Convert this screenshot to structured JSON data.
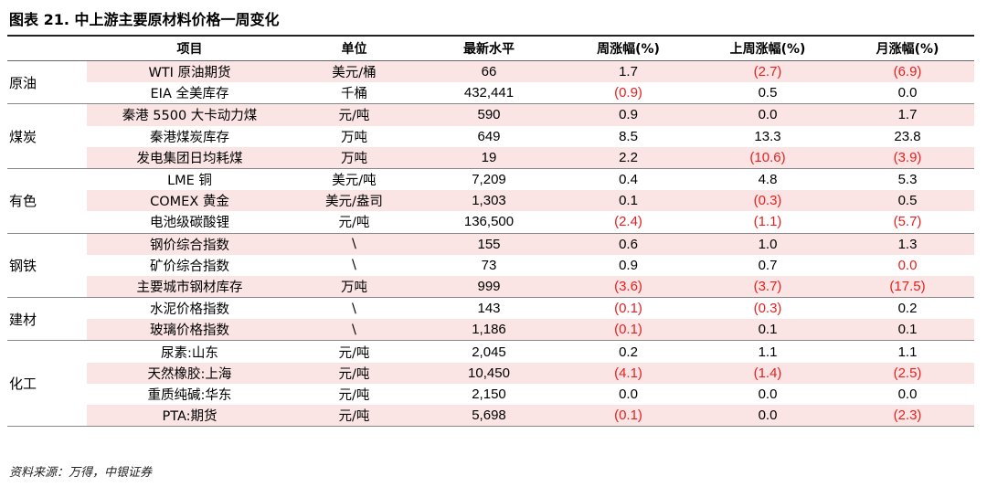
{
  "title": "图表 21. 中上游主要原材料价格一周变化",
  "red_color": "#e8201f",
  "shade_color": "#fbe4e4",
  "table": {
    "columns": [
      "项目",
      "单位",
      "最新水平",
      "周涨幅(%)",
      "上周涨幅(%)",
      "月涨幅(%)"
    ],
    "groups": [
      {
        "name": "原油",
        "rows": [
          {
            "item": "WTI 原油期货",
            "unit": "美元/桶",
            "latest": "66",
            "week": "1.7",
            "last_week": "(2.7)",
            "month": "(6.9)",
            "red": [
              "last_week",
              "month"
            ]
          },
          {
            "item": "EIA 全美库存",
            "unit": "千桶",
            "latest": "432,441",
            "week": "(0.9)",
            "last_week": "0.5",
            "month": "0.0",
            "red": [
              "week"
            ]
          }
        ]
      },
      {
        "name": "煤炭",
        "rows": [
          {
            "item": "秦港 5500 大卡动力煤",
            "unit": "元/吨",
            "latest": "590",
            "week": "0.9",
            "last_week": "0.0",
            "month": "1.7",
            "red": []
          },
          {
            "item": "秦港煤炭库存",
            "unit": "万吨",
            "latest": "649",
            "week": "8.5",
            "last_week": "13.3",
            "month": "23.8",
            "red": []
          },
          {
            "item": "发电集团日均耗煤",
            "unit": "万吨",
            "latest": "19",
            "week": "2.2",
            "last_week": "(10.6)",
            "month": "(3.9)",
            "red": [
              "last_week",
              "month"
            ]
          }
        ]
      },
      {
        "name": "有色",
        "rows": [
          {
            "item": "LME 铜",
            "unit": "美元/吨",
            "latest": "7,209",
            "week": "0.4",
            "last_week": "4.8",
            "month": "5.3",
            "red": []
          },
          {
            "item": "COMEX 黄金",
            "unit": "美元/盎司",
            "latest": "1,303",
            "week": "0.1",
            "last_week": "(0.3)",
            "month": "0.5",
            "red": [
              "last_week"
            ]
          },
          {
            "item": "电池级碳酸锂",
            "unit": "元/吨",
            "latest": "136,500",
            "week": "(2.4)",
            "last_week": "(1.1)",
            "month": "(5.7)",
            "red": [
              "week",
              "last_week",
              "month"
            ]
          }
        ]
      },
      {
        "name": "钢铁",
        "rows": [
          {
            "item": "钢价综合指数",
            "unit": "\\",
            "latest": "155",
            "week": "0.6",
            "last_week": "1.0",
            "month": "1.3",
            "red": []
          },
          {
            "item": "矿价综合指数",
            "unit": "\\",
            "latest": "73",
            "week": "0.9",
            "last_week": "0.7",
            "month": "0.0",
            "red": [
              "month"
            ]
          },
          {
            "item": "主要城市钢材库存",
            "unit": "万吨",
            "latest": "999",
            "week": "(3.6)",
            "last_week": "(3.7)",
            "month": "(17.5)",
            "red": [
              "week",
              "last_week",
              "month"
            ]
          }
        ]
      },
      {
        "name": "建材",
        "rows": [
          {
            "item": "水泥价格指数",
            "unit": "\\",
            "latest": "143",
            "week": "(0.1)",
            "last_week": "(0.3)",
            "month": "0.2",
            "red": [
              "week",
              "last_week"
            ]
          },
          {
            "item": "玻璃价格指数",
            "unit": "\\",
            "latest": "1,186",
            "week": "(0.1)",
            "last_week": "0.1",
            "month": "0.1",
            "red": [
              "week"
            ]
          }
        ]
      },
      {
        "name": "化工",
        "rows": [
          {
            "item": "尿素:山东",
            "unit": "元/吨",
            "latest": "2,045",
            "week": "0.2",
            "last_week": "1.1",
            "month": "1.1",
            "red": []
          },
          {
            "item": "天然橡胶:上海",
            "unit": "元/吨",
            "latest": "10,450",
            "week": "(4.1)",
            "last_week": "(1.4)",
            "month": "(2.5)",
            "red": [
              "week",
              "last_week",
              "month"
            ]
          },
          {
            "item": "重质纯碱:华东",
            "unit": "元/吨",
            "latest": "2,150",
            "week": "0.0",
            "last_week": "0.0",
            "month": "0.0",
            "red": []
          },
          {
            "item": "PTA:期货",
            "unit": "元/吨",
            "latest": "5,698",
            "week": "(0.1)",
            "last_week": "0.0",
            "month": "(2.3)",
            "red": [
              "week",
              "month"
            ]
          }
        ]
      }
    ]
  },
  "source": "资料来源：万得，中银证券"
}
